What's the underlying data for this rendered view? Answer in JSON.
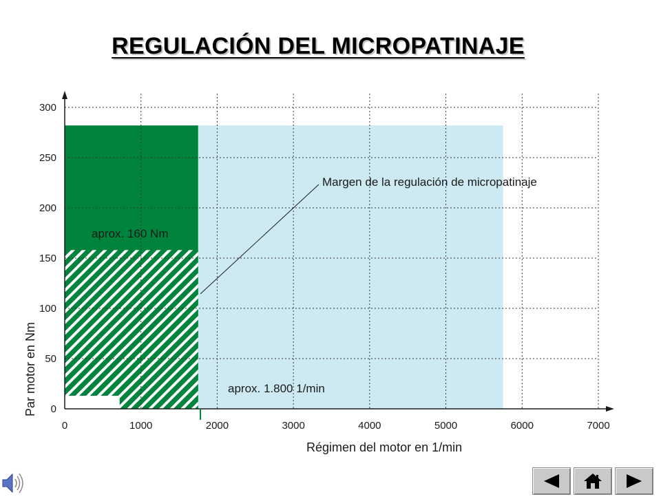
{
  "title": "REGULACIÓN DEL MICROPATINAJE",
  "chart_data": {
    "type": "area",
    "xlabel": "Régimen del motor en 1/min",
    "ylabel": "Par motor en Nm",
    "xlim": [
      0,
      7000
    ],
    "ylim": [
      0,
      300
    ],
    "x_ticks": [
      0,
      1000,
      2000,
      3000,
      4000,
      5000,
      6000,
      7000
    ],
    "y_ticks": [
      0,
      50,
      100,
      150,
      200,
      250,
      300
    ],
    "grid": true,
    "regions": [
      {
        "kind": "light",
        "x": [
          0,
          5750
        ],
        "y": [
          0,
          282
        ],
        "color": "#cdeaf2"
      },
      {
        "kind": "solid",
        "x": [
          0,
          1750
        ],
        "y": [
          0,
          282
        ],
        "color": "#00843d"
      },
      {
        "kind": "hatched",
        "x": [
          0,
          1750
        ],
        "y": [
          0,
          158
        ],
        "color": "#00843d"
      },
      {
        "kind": "white",
        "x": [
          0,
          720
        ],
        "y": [
          0,
          13
        ],
        "color": "#ffffff"
      }
    ],
    "marker_x": 1780,
    "annotations": {
      "margin_label": "Margen de la regulación de micropatinaje",
      "torque_label": "aprox. 160 Nm",
      "rpm_label": "aprox. 1.800 1/min"
    }
  },
  "navigation": {
    "buttons": [
      {
        "name": "previous",
        "icon": "triangle-left-icon"
      },
      {
        "name": "home",
        "icon": "home-icon"
      },
      {
        "name": "next",
        "icon": "triangle-right-icon"
      }
    ]
  },
  "audio_icon": "speaker-icon"
}
